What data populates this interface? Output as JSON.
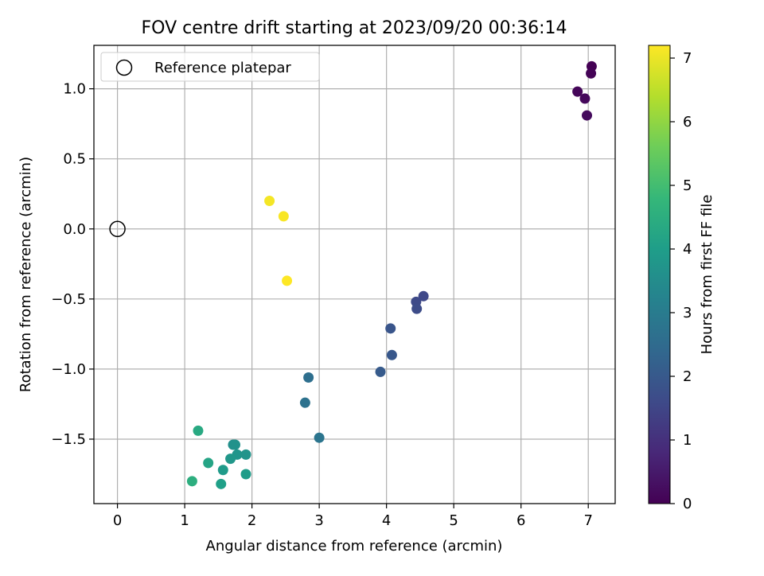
{
  "chart_data": {
    "type": "scatter",
    "title": "FOV centre drift starting at 2023/09/20 00:36:14",
    "xlabel": "Angular distance from reference (arcmin)",
    "ylabel": "Rotation from reference (arcmin)",
    "xlim": [
      -0.35,
      7.4
    ],
    "ylim": [
      -1.96,
      1.31
    ],
    "xticks": [
      0,
      1,
      2,
      3,
      4,
      5,
      6,
      7
    ],
    "yticks": [
      -1.5,
      -1.0,
      -0.5,
      0.0,
      0.5,
      1.0
    ],
    "ytick_labels": [
      "−1.5",
      "−1.0",
      "−0.5",
      "0.0",
      "0.5",
      "1.0"
    ],
    "grid": true,
    "legend": {
      "placement": "top-left",
      "entries": [
        "Reference platepar"
      ]
    },
    "reference_point": {
      "x": 0.0,
      "y": 0.0,
      "marker": "hollow-circle",
      "color": "#000000"
    },
    "colorbar": {
      "label": "Hours from first FF file",
      "colormap": "viridis",
      "range": [
        0,
        7.2
      ],
      "ticks": [
        0,
        1,
        2,
        3,
        4,
        5,
        6,
        7
      ]
    },
    "points": [
      {
        "x": 7.05,
        "y": 1.16,
        "h": 0.0
      },
      {
        "x": 7.04,
        "y": 1.11,
        "h": 0.05
      },
      {
        "x": 6.84,
        "y": 0.98,
        "h": 0.1
      },
      {
        "x": 6.95,
        "y": 0.93,
        "h": 0.15
      },
      {
        "x": 6.98,
        "y": 0.81,
        "h": 0.2
      },
      {
        "x": 4.55,
        "y": -0.48,
        "h": 1.55
      },
      {
        "x": 4.44,
        "y": -0.52,
        "h": 1.6
      },
      {
        "x": 4.45,
        "y": -0.57,
        "h": 1.65
      },
      {
        "x": 4.06,
        "y": -0.71,
        "h": 1.9
      },
      {
        "x": 4.08,
        "y": -0.9,
        "h": 1.95
      },
      {
        "x": 3.91,
        "y": -1.02,
        "h": 2.05
      },
      {
        "x": 2.84,
        "y": -1.06,
        "h": 2.6
      },
      {
        "x": 2.79,
        "y": -1.24,
        "h": 2.7
      },
      {
        "x": 3.0,
        "y": -1.49,
        "h": 2.8
      },
      {
        "x": 1.72,
        "y": -1.54,
        "h": 3.6
      },
      {
        "x": 1.75,
        "y": -1.54,
        "h": 3.65
      },
      {
        "x": 1.78,
        "y": -1.61,
        "h": 3.75
      },
      {
        "x": 1.91,
        "y": -1.61,
        "h": 3.7
      },
      {
        "x": 1.68,
        "y": -1.64,
        "h": 3.8
      },
      {
        "x": 1.57,
        "y": -1.72,
        "h": 3.9
      },
      {
        "x": 1.91,
        "y": -1.75,
        "h": 3.95
      },
      {
        "x": 1.54,
        "y": -1.82,
        "h": 4.05
      },
      {
        "x": 1.35,
        "y": -1.67,
        "h": 4.2
      },
      {
        "x": 1.2,
        "y": -1.44,
        "h": 4.35
      },
      {
        "x": 1.11,
        "y": -1.8,
        "h": 4.5
      },
      {
        "x": 2.26,
        "y": 0.2,
        "h": 7.1
      },
      {
        "x": 2.47,
        "y": 0.09,
        "h": 7.15
      },
      {
        "x": 2.52,
        "y": -0.37,
        "h": 7.2
      }
    ]
  }
}
